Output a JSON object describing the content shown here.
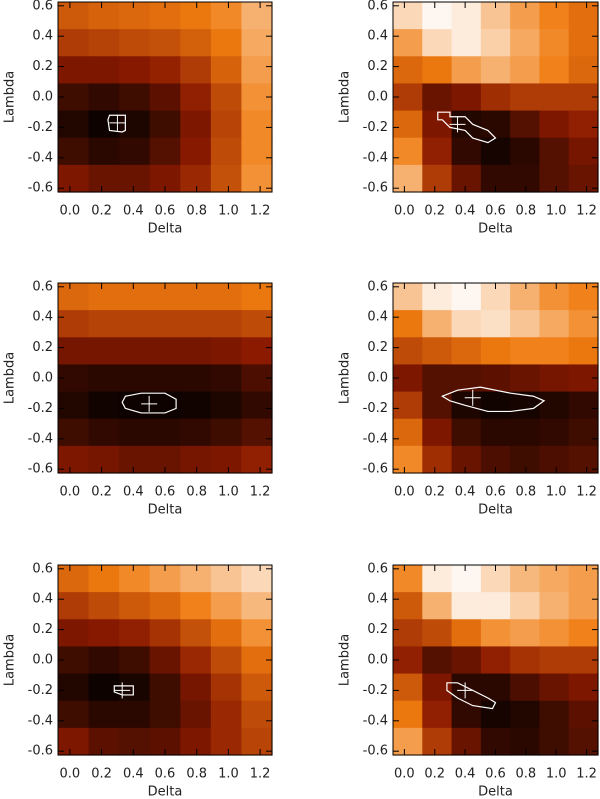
{
  "chart_data": [
    {
      "type": "heatmap",
      "xlabel": "Delta",
      "ylabel": "Lambda",
      "xlim": [
        -0.075,
        1.275
      ],
      "ylim": [
        -0.625,
        0.625
      ],
      "xticks": [
        {
          "value": 0,
          "label": "0.0"
        },
        0.2,
        0.4,
        0.6,
        0.8,
        {
          "value": 1,
          "label": "1.0"
        },
        1.2
      ],
      "yticks": [
        -0.6,
        -0.4,
        -0.2,
        {
          "value": 0,
          "label": "0.0"
        },
        0.2,
        0.4,
        0.6
      ],
      "colormap": [
        "#000000",
        "#8c1a00",
        "#f07c10",
        "#ffffff"
      ],
      "z": [
        [
          0.55,
          0.58,
          0.6,
          0.62,
          0.65,
          0.7,
          0.8
        ],
        [
          0.45,
          0.47,
          0.5,
          0.52,
          0.57,
          0.65,
          0.78
        ],
        [
          0.3,
          0.3,
          0.32,
          0.36,
          0.45,
          0.58,
          0.75
        ],
        [
          0.15,
          0.12,
          0.15,
          0.22,
          0.35,
          0.5,
          0.72
        ],
        [
          0.08,
          0.03,
          0.07,
          0.15,
          0.3,
          0.48,
          0.7
        ],
        [
          0.15,
          0.1,
          0.12,
          0.2,
          0.32,
          0.5,
          0.7
        ],
        [
          0.3,
          0.25,
          0.25,
          0.3,
          0.38,
          0.52,
          0.72
        ]
      ],
      "contour": {
        "x": [
          0.25,
          0.35,
          0.35,
          0.33,
          0.25,
          0.24
        ],
        "y": [
          -0.12,
          -0.12,
          -0.22,
          -0.23,
          -0.22,
          -0.15
        ]
      },
      "best_fit": {
        "x": 0.3,
        "y": -0.17
      }
    },
    {
      "type": "heatmap",
      "xlabel": "Delta",
      "ylabel": "Lambda",
      "xlim": [
        -0.075,
        1.275
      ],
      "ylim": [
        -0.625,
        0.625
      ],
      "xticks": [
        {
          "value": 0,
          "label": "0.0"
        },
        0.2,
        0.4,
        0.6,
        0.8,
        {
          "value": 1,
          "label": "1.0"
        },
        1.2
      ],
      "yticks": [
        -0.6,
        -0.4,
        -0.2,
        {
          "value": 0,
          "label": "0.0"
        },
        0.2,
        0.4,
        0.6
      ],
      "colormap": [
        "#000000",
        "#8c1a00",
        "#f07c10",
        "#ffffff"
      ],
      "z": [
        [
          0.9,
          0.98,
          0.95,
          0.85,
          0.75,
          0.68,
          0.62
        ],
        [
          0.75,
          0.9,
          0.95,
          0.88,
          0.78,
          0.7,
          0.62
        ],
        [
          0.6,
          0.65,
          0.75,
          0.8,
          0.75,
          0.68,
          0.6
        ],
        [
          0.45,
          0.25,
          0.3,
          0.4,
          0.45,
          0.45,
          0.45
        ],
        [
          0.6,
          0.3,
          0.08,
          0.1,
          0.2,
          0.3,
          0.35
        ],
        [
          0.7,
          0.35,
          0.12,
          0.05,
          0.1,
          0.2,
          0.28
        ],
        [
          0.8,
          0.45,
          0.25,
          0.12,
          0.12,
          0.2,
          0.25
        ]
      ],
      "contour": {
        "x": [
          0.22,
          0.3,
          0.3,
          0.4,
          0.45,
          0.55,
          0.6,
          0.55,
          0.45,
          0.4,
          0.3,
          0.25,
          0.22
        ],
        "y": [
          -0.1,
          -0.1,
          -0.13,
          -0.13,
          -0.18,
          -0.22,
          -0.27,
          -0.3,
          -0.27,
          -0.22,
          -0.2,
          -0.15,
          -0.15
        ]
      },
      "best_fit": {
        "x": 0.35,
        "y": -0.18
      }
    },
    {
      "type": "heatmap",
      "xlabel": "Delta",
      "ylabel": "Lambda",
      "xlim": [
        -0.075,
        1.275
      ],
      "ylim": [
        -0.625,
        0.625
      ],
      "xticks": [
        {
          "value": 0,
          "label": "0.0"
        },
        0.2,
        0.4,
        0.6,
        0.8,
        {
          "value": 1,
          "label": "1.0"
        },
        1.2
      ],
      "yticks": [
        -0.6,
        -0.4,
        -0.2,
        {
          "value": 0,
          "label": "0.0"
        },
        0.2,
        0.4,
        0.6
      ],
      "colormap": [
        "#000000",
        "#8c1a00",
        "#f07c10",
        "#ffffff"
      ],
      "z": [
        [
          0.6,
          0.62,
          0.62,
          0.62,
          0.62,
          0.62,
          0.65
        ],
        [
          0.45,
          0.47,
          0.47,
          0.47,
          0.47,
          0.47,
          0.5
        ],
        [
          0.28,
          0.28,
          0.28,
          0.28,
          0.28,
          0.3,
          0.33
        ],
        [
          0.12,
          0.1,
          0.1,
          0.1,
          0.1,
          0.12,
          0.18
        ],
        [
          0.08,
          0.04,
          0.03,
          0.03,
          0.04,
          0.07,
          0.12
        ],
        [
          0.15,
          0.12,
          0.1,
          0.1,
          0.12,
          0.15,
          0.2
        ],
        [
          0.3,
          0.28,
          0.25,
          0.25,
          0.28,
          0.3,
          0.35
        ]
      ],
      "contour": {
        "x": [
          0.35,
          0.45,
          0.6,
          0.67,
          0.67,
          0.6,
          0.45,
          0.35,
          0.33
        ],
        "y": [
          -0.12,
          -0.1,
          -0.1,
          -0.14,
          -0.2,
          -0.23,
          -0.23,
          -0.2,
          -0.16
        ]
      },
      "best_fit": {
        "x": 0.5,
        "y": -0.17
      }
    },
    {
      "type": "heatmap",
      "xlabel": "Delta",
      "ylabel": "Lambda",
      "xlim": [
        -0.075,
        1.275
      ],
      "ylim": [
        -0.625,
        0.625
      ],
      "xticks": [
        {
          "value": 0,
          "label": "0.0"
        },
        0.2,
        0.4,
        0.6,
        0.8,
        {
          "value": 1,
          "label": "1.0"
        },
        1.2
      ],
      "yticks": [
        -0.6,
        -0.4,
        -0.2,
        {
          "value": 0,
          "label": "0.0"
        },
        0.2,
        0.4,
        0.6
      ],
      "colormap": [
        "#000000",
        "#8c1a00",
        "#f07c10",
        "#ffffff"
      ],
      "z": [
        [
          0.85,
          0.95,
          0.98,
          0.9,
          0.8,
          0.72,
          0.68
        ],
        [
          0.65,
          0.8,
          0.9,
          0.92,
          0.85,
          0.78,
          0.72
        ],
        [
          0.5,
          0.55,
          0.6,
          0.65,
          0.68,
          0.68,
          0.65
        ],
        [
          0.3,
          0.2,
          0.2,
          0.22,
          0.25,
          0.28,
          0.3
        ],
        [
          0.45,
          0.2,
          0.07,
          0.04,
          0.05,
          0.08,
          0.12
        ],
        [
          0.6,
          0.3,
          0.15,
          0.1,
          0.1,
          0.12,
          0.15
        ],
        [
          0.7,
          0.4,
          0.25,
          0.18,
          0.15,
          0.18,
          0.2
        ]
      ],
      "contour": {
        "x": [
          0.25,
          0.35,
          0.5,
          0.7,
          0.85,
          0.92,
          0.85,
          0.7,
          0.55,
          0.4,
          0.3
        ],
        "y": [
          -0.12,
          -0.08,
          -0.06,
          -0.1,
          -0.12,
          -0.15,
          -0.2,
          -0.22,
          -0.22,
          -0.18,
          -0.15
        ]
      },
      "best_fit": {
        "x": 0.45,
        "y": -0.13
      }
    },
    {
      "type": "heatmap",
      "xlabel": "Delta",
      "ylabel": "Lambda",
      "xlim": [
        -0.075,
        1.275
      ],
      "ylim": [
        -0.625,
        0.625
      ],
      "xticks": [
        {
          "value": 0,
          "label": "0.0"
        },
        0.2,
        0.4,
        0.6,
        0.8,
        {
          "value": 1,
          "label": "1.0"
        },
        1.2
      ],
      "yticks": [
        -0.6,
        -0.4,
        -0.2,
        {
          "value": 0,
          "label": "0.0"
        },
        0.2,
        0.4,
        0.6
      ],
      "colormap": [
        "#000000",
        "#8c1a00",
        "#f07c10",
        "#ffffff"
      ],
      "z": [
        [
          0.6,
          0.65,
          0.7,
          0.75,
          0.8,
          0.85,
          0.9
        ],
        [
          0.45,
          0.5,
          0.55,
          0.6,
          0.68,
          0.75,
          0.82
        ],
        [
          0.3,
          0.32,
          0.35,
          0.42,
          0.52,
          0.62,
          0.72
        ],
        [
          0.15,
          0.12,
          0.15,
          0.25,
          0.38,
          0.5,
          0.62
        ],
        [
          0.08,
          0.03,
          0.06,
          0.15,
          0.28,
          0.42,
          0.55
        ],
        [
          0.15,
          0.1,
          0.1,
          0.15,
          0.25,
          0.38,
          0.5
        ],
        [
          0.3,
          0.22,
          0.2,
          0.22,
          0.3,
          0.38,
          0.48
        ]
      ],
      "contour": {
        "x": [
          0.28,
          0.4,
          0.4,
          0.33,
          0.28
        ],
        "y": [
          -0.17,
          -0.17,
          -0.23,
          -0.23,
          -0.21
        ]
      },
      "best_fit": {
        "x": 0.33,
        "y": -0.2
      }
    },
    {
      "type": "heatmap",
      "xlabel": "Delta",
      "ylabel": "Lambda",
      "xlim": [
        -0.075,
        1.275
      ],
      "ylim": [
        -0.625,
        0.625
      ],
      "xticks": [
        {
          "value": 0,
          "label": "0.0"
        },
        0.2,
        0.4,
        0.6,
        0.8,
        {
          "value": 1,
          "label": "1.0"
        },
        1.2
      ],
      "yticks": [
        -0.6,
        -0.4,
        -0.2,
        {
          "value": 0,
          "label": "0.0"
        },
        0.2,
        0.4,
        0.6
      ],
      "colormap": [
        "#000000",
        "#8c1a00",
        "#f07c10",
        "#ffffff"
      ],
      "z": [
        [
          0.7,
          0.95,
          0.98,
          0.9,
          0.82,
          0.78,
          0.75
        ],
        [
          0.55,
          0.8,
          0.95,
          0.95,
          0.88,
          0.8,
          0.75
        ],
        [
          0.45,
          0.5,
          0.62,
          0.72,
          0.75,
          0.72,
          0.68
        ],
        [
          0.35,
          0.2,
          0.25,
          0.35,
          0.42,
          0.45,
          0.45
        ],
        [
          0.55,
          0.3,
          0.1,
          0.1,
          0.18,
          0.25,
          0.3
        ],
        [
          0.65,
          0.35,
          0.12,
          0.05,
          0.08,
          0.15,
          0.22
        ],
        [
          0.75,
          0.45,
          0.25,
          0.12,
          0.1,
          0.15,
          0.2
        ]
      ],
      "contour": {
        "x": [
          0.28,
          0.35,
          0.45,
          0.55,
          0.6,
          0.58,
          0.45,
          0.35,
          0.28
        ],
        "y": [
          -0.15,
          -0.15,
          -0.2,
          -0.25,
          -0.28,
          -0.32,
          -0.3,
          -0.25,
          -0.2
        ]
      },
      "best_fit": {
        "x": 0.4,
        "y": -0.2
      }
    }
  ]
}
